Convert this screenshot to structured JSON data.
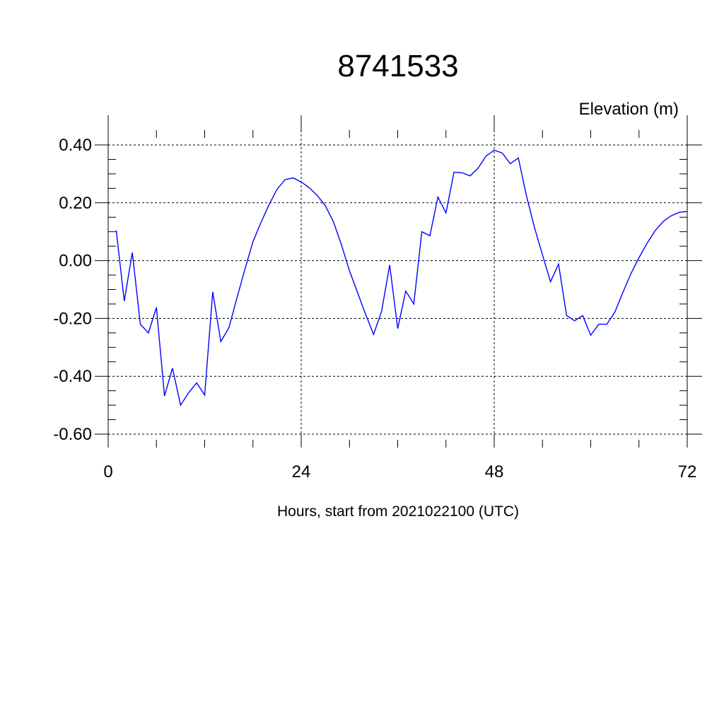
{
  "chart_data": {
    "type": "line",
    "title": "8741533",
    "ylabel": "Elevation (m)",
    "xlabel": "Hours, start from 2021022100 (UTC)",
    "xlim": [
      0,
      72
    ],
    "ylim": [
      -0.6,
      0.45
    ],
    "xticks": [
      0,
      24,
      48,
      72
    ],
    "xtick_labels": [
      "0",
      "24",
      "48",
      "72"
    ],
    "yticks": [
      0.4,
      0.2,
      0.0,
      -0.2,
      -0.4,
      -0.6
    ],
    "ytick_labels": [
      "0.40",
      "0.20",
      "0.00",
      "-0.20",
      "-0.40",
      "-0.60"
    ],
    "grid": true,
    "series": [
      {
        "color": "#0000ff",
        "x": [
          1,
          2,
          3,
          4,
          5,
          6,
          7,
          8,
          9,
          10,
          11,
          12,
          13,
          14,
          15,
          16,
          17,
          18,
          19,
          20,
          21,
          22,
          23,
          24,
          25,
          26,
          27,
          28,
          29,
          30,
          31,
          32,
          33,
          34,
          35,
          36,
          37,
          38,
          39,
          40,
          41,
          42,
          43,
          44,
          45,
          46,
          47,
          48,
          49,
          50,
          51,
          52,
          53,
          54,
          55,
          56,
          57,
          58,
          59,
          60,
          61,
          62,
          63,
          64,
          65,
          66,
          67,
          68,
          69,
          70,
          71,
          72
        ],
        "y": [
          0.105,
          -0.14,
          0.028,
          -0.22,
          -0.25,
          -0.162,
          -0.468,
          -0.372,
          -0.5,
          -0.457,
          -0.423,
          -0.465,
          -0.108,
          -0.28,
          -0.233,
          -0.13,
          -0.03,
          0.065,
          0.132,
          0.193,
          0.247,
          0.28,
          0.286,
          0.272,
          0.252,
          0.225,
          0.19,
          0.135,
          0.055,
          -0.035,
          -0.11,
          -0.185,
          -0.255,
          -0.175,
          -0.015,
          -0.235,
          -0.105,
          -0.15,
          0.1,
          0.086,
          0.22,
          0.165,
          0.306,
          0.304,
          0.293,
          0.32,
          0.362,
          0.382,
          0.372,
          0.335,
          0.355,
          0.225,
          0.115,
          0.02,
          -0.073,
          -0.012,
          -0.19,
          -0.208,
          -0.19,
          -0.258,
          -0.22,
          -0.22,
          -0.178,
          -0.11,
          -0.045,
          0.01,
          0.06,
          0.103,
          0.135,
          0.155,
          0.167,
          0.17
        ]
      }
    ]
  }
}
